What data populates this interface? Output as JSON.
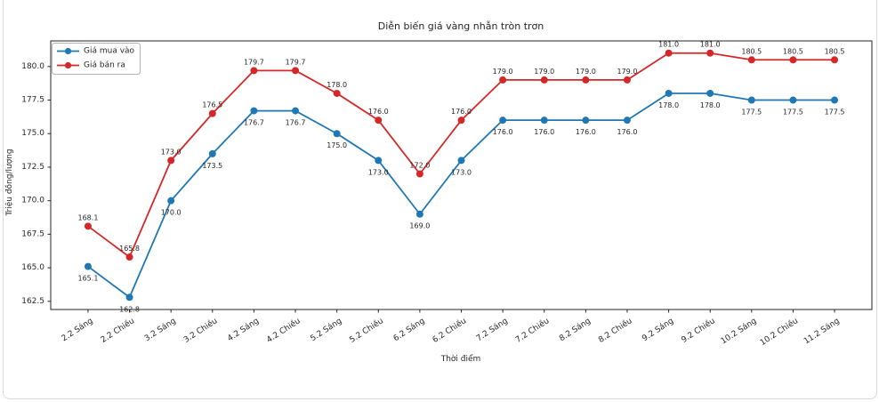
{
  "chart_data": {
    "type": "line",
    "title": "Diễn biến giá vàng nhẫn tròn trơn",
    "xlabel": "Thời điểm",
    "ylabel": "Triệu đồng/lượng",
    "categories": [
      "2.2 Sáng",
      "2.2 Chiều",
      "3.2 Sáng",
      "3.2 Chiều",
      "4.2 Sáng",
      "4.2 Chiều",
      "5.2 Sáng",
      "5.2 Chiều",
      "6.2 Sáng",
      "6.2 Chiều",
      "7.2 Sáng",
      "7.2 Chiều",
      "8.2 Sáng",
      "8.2 Chiều",
      "9.2 Sáng",
      "9.2 Chiều",
      "10.2 Sáng",
      "10.2 Chiều",
      "11.2 Sáng"
    ],
    "series": [
      {
        "name": "Giá mua vào",
        "color": "#1f77b4",
        "label_color": "#1a1a1a",
        "label_position": "below",
        "values": [
          165.1,
          162.8,
          170.0,
          173.5,
          176.7,
          176.7,
          175.0,
          173.0,
          169.0,
          173.0,
          176.0,
          176.0,
          176.0,
          176.0,
          178.0,
          178.0,
          177.5,
          177.5,
          177.5
        ]
      },
      {
        "name": "Giá bán ra",
        "color": "#d62728",
        "label_color": "#d62728",
        "label_position": "above",
        "values": [
          168.1,
          165.8,
          173.0,
          176.5,
          179.7,
          179.7,
          178.0,
          176.0,
          172.0,
          176.0,
          179.0,
          179.0,
          179.0,
          179.0,
          181.0,
          181.0,
          180.5,
          180.5,
          180.5
        ]
      }
    ],
    "yticks": [
      162.5,
      165.0,
      167.5,
      170.0,
      172.5,
      175.0,
      177.5,
      180.0
    ],
    "ylim": [
      161.89,
      181.91
    ],
    "grid": false,
    "legend_position": "upper-left",
    "marker": "circle",
    "x_tick_rotation": 33,
    "value_label_format": "one-decimal"
  },
  "figure": {
    "background": "#ffffff",
    "card_border_color": "#d9d9d9",
    "spine_color": "#262626"
  }
}
